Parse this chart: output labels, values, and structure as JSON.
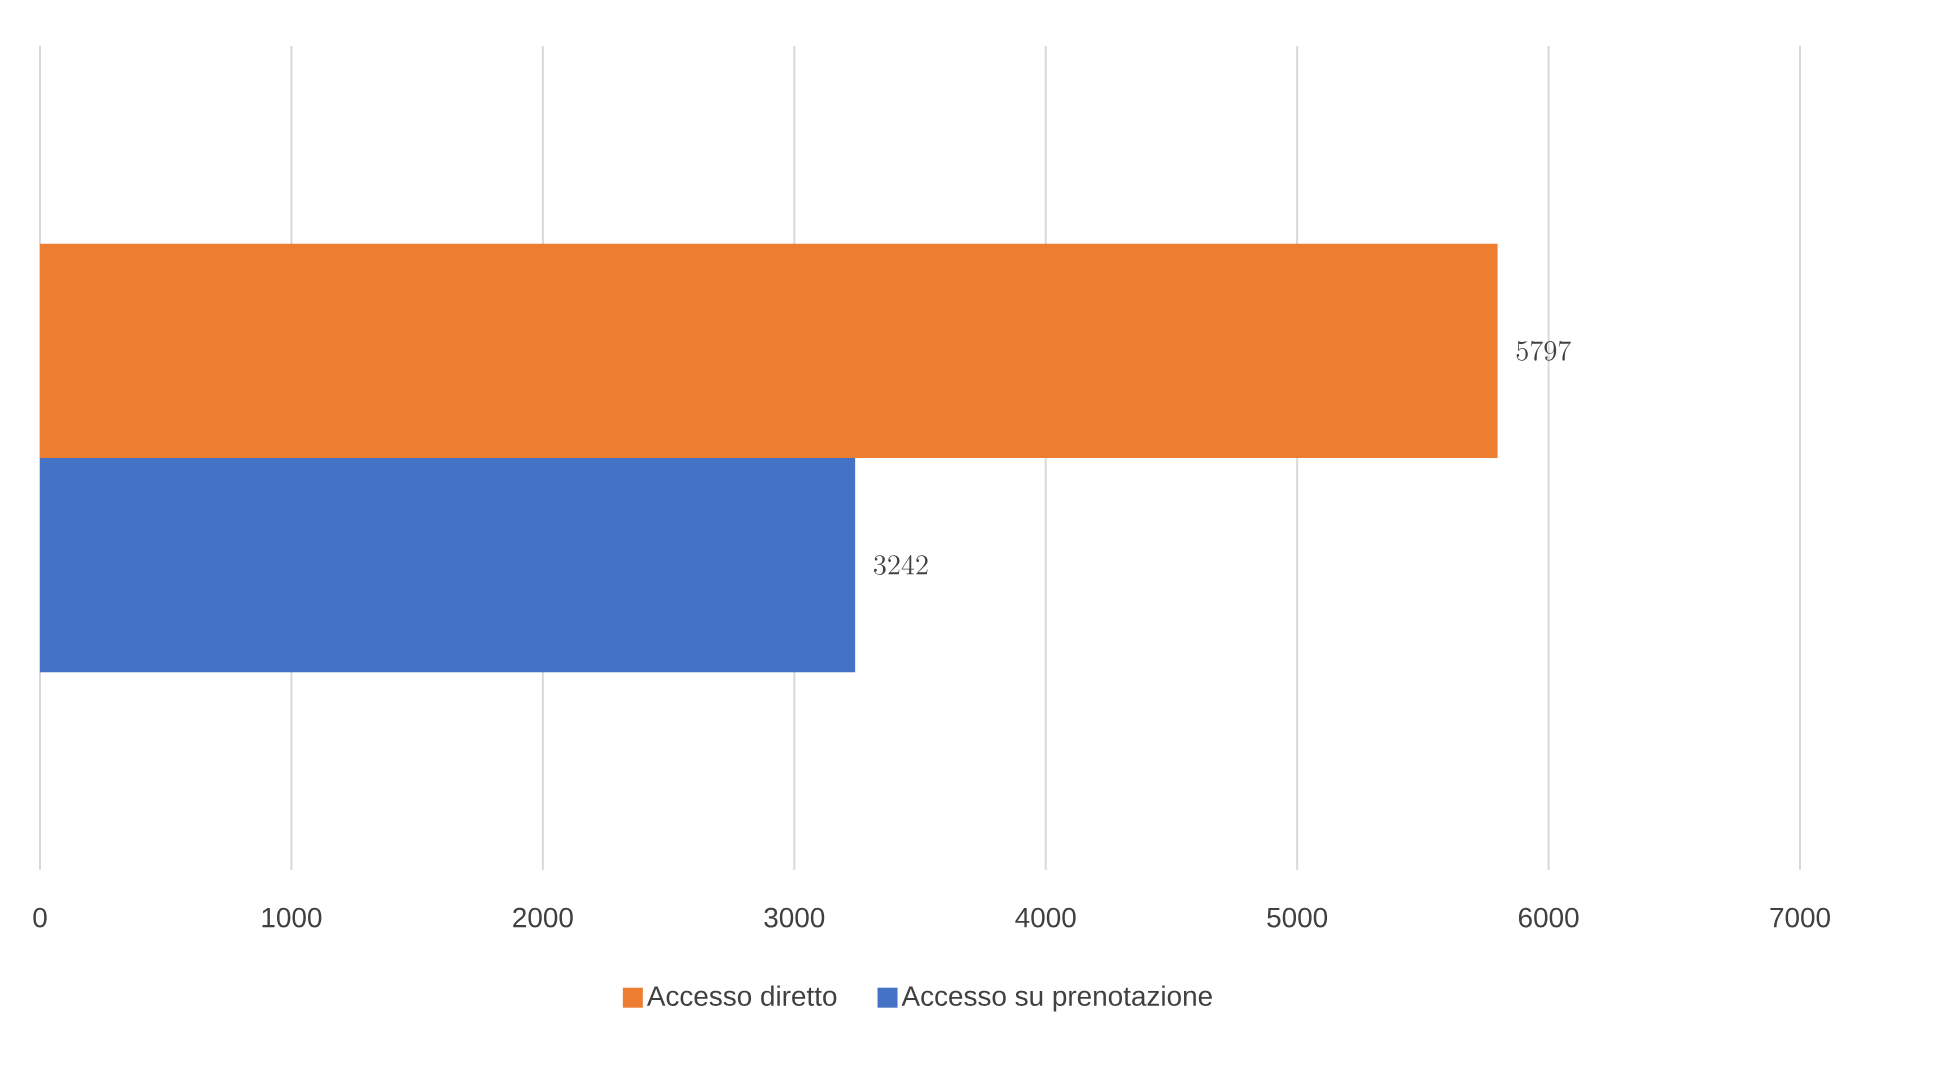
{
  "chart_data": {
    "type": "bar",
    "orientation": "horizontal",
    "categories": [
      null
    ],
    "series": [
      {
        "name": "Accesso diretto",
        "color": "#ed7d31",
        "values": [
          5797
        ]
      },
      {
        "name": "Accesso su prenotazione",
        "color": "#4472c4",
        "values": [
          3242
        ]
      }
    ],
    "xlim": [
      0,
      7000
    ],
    "xticks": [
      0,
      1000,
      2000,
      3000,
      4000,
      5000,
      6000,
      7000
    ],
    "grid": "x",
    "legend": "bottom",
    "data_labels": true,
    "tick_labels": "x"
  }
}
